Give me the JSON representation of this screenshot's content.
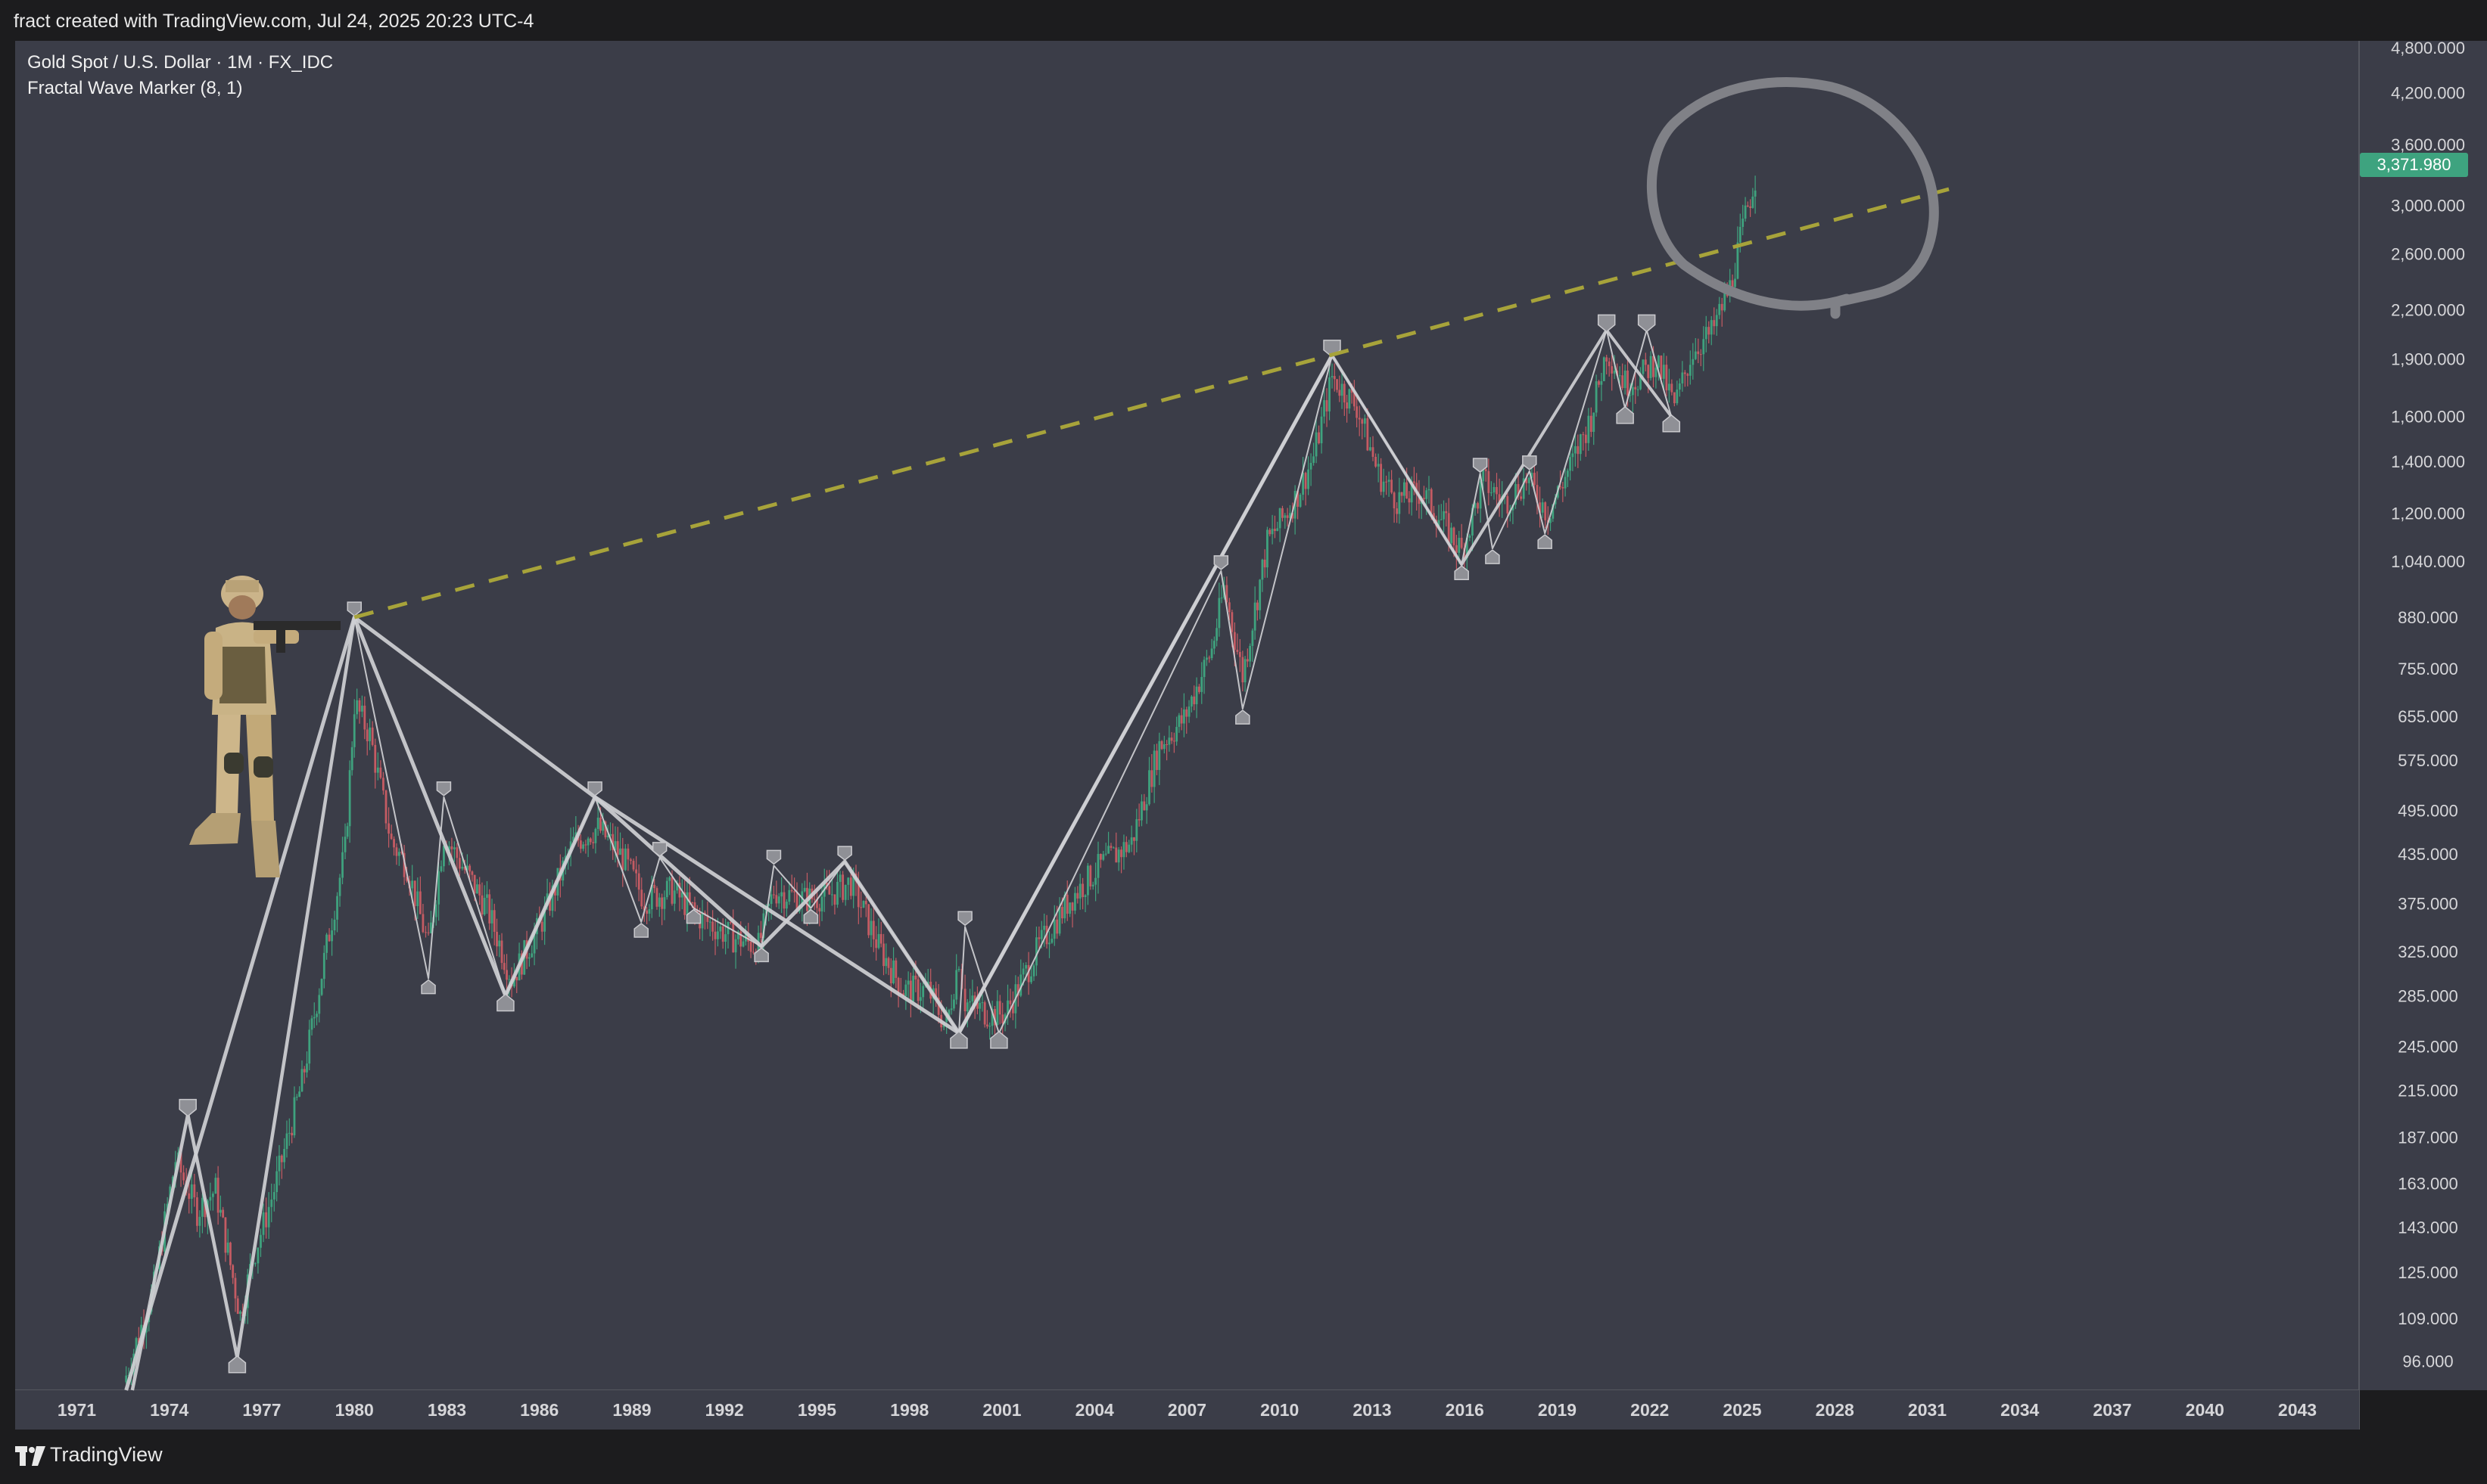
{
  "header": {
    "attribution": "fract created with TradingView.com, Jul 24, 2025 20:23 UTC-4"
  },
  "legend": {
    "symbol": "Gold Spot / U.S. Dollar · 1M · FX_IDC",
    "indicator": "Fractal Wave Marker (8, 1)"
  },
  "footer": {
    "brand": "TradingView",
    "logo_icon": "tradingview-logo-icon"
  },
  "price_badge": "3,371.980",
  "colors": {
    "background": "#3b3d48",
    "frame": "#1c1c1e",
    "up_candle": "#3fa27e",
    "down_candle": "#c45b63",
    "wave_line": "#cfcfd4",
    "trendline": "#a7a33a",
    "circle_annotation": "#808187",
    "price_badge": "#3ea37f"
  },
  "annotations": {
    "soldier_image": "soldier-with-rifle",
    "hand_drawn_circle": "circle around 2025 price peak",
    "trendline_style": "dashed"
  },
  "chart_data": {
    "type": "line",
    "scale": "log",
    "x_ticks": [
      "1971",
      "1974",
      "1977",
      "1980",
      "1983",
      "1986",
      "1989",
      "1992",
      "1995",
      "1998",
      "2001",
      "2004",
      "2007",
      "2010",
      "2013",
      "2016",
      "2019",
      "2022",
      "2025",
      "2028",
      "2031",
      "2034",
      "2037",
      "2040",
      "2043"
    ],
    "y_ticks": [
      "96.000",
      "109.000",
      "125.000",
      "143.000",
      "163.000",
      "187.000",
      "215.000",
      "245.000",
      "285.000",
      "325.000",
      "375.000",
      "435.000",
      "495.000",
      "575.000",
      "655.000",
      "755.000",
      "880.000",
      "1,040.000",
      "1,200.000",
      "1,400.000",
      "1,600.000",
      "1,900.000",
      "2,200.000",
      "2,600.000",
      "3,000.000",
      "3,600.000",
      "4,200.000",
      "4,800.000"
    ],
    "ylim": [
      88,
      4900
    ],
    "xlim": [
      1969,
      2045
    ],
    "price_series": {
      "name": "XAUUSD monthly close",
      "x": [
        1972.6,
        1973.5,
        1974.2,
        1974.9,
        1975.5,
        1976.3,
        1976.7,
        1977.4,
        1978.3,
        1979.1,
        1979.7,
        1980.0,
        1980.5,
        1981.2,
        1981.7,
        1982.4,
        1982.9,
        1983.5,
        1984.3,
        1985.1,
        1986.0,
        1987.1,
        1987.9,
        1988.7,
        1989.4,
        1990.3,
        1991.2,
        1992.2,
        1993.1,
        1993.6,
        1994.6,
        1995.4,
        1996.1,
        1997.0,
        1997.8,
        1998.6,
        1999.2,
        1999.6,
        1999.8,
        2000.6,
        2001.1,
        2002.2,
        2003.2,
        2004.2,
        2005.2,
        2006.1,
        2006.9,
        2007.8,
        2008.2,
        2008.8,
        2009.6,
        2010.5,
        2011.1,
        2011.7,
        2012.5,
        2013.2,
        2013.8,
        2014.6,
        2015.4,
        2015.9,
        2016.6,
        2017.3,
        2018.0,
        2018.7,
        2019.5,
        2020.1,
        2020.6,
        2021.2,
        2021.7,
        2022.2,
        2022.8,
        2023.4,
        2024.0,
        2024.6,
        2025.1,
        2025.5
      ],
      "y": [
        92,
        120,
        175,
        150,
        160,
        110,
        130,
        160,
        220,
        330,
        440,
        680,
        620,
        450,
        420,
        330,
        460,
        420,
        370,
        300,
        350,
        450,
        470,
        430,
        380,
        390,
        360,
        340,
        330,
        390,
        380,
        385,
        400,
        330,
        290,
        290,
        260,
        320,
        280,
        270,
        270,
        330,
        380,
        420,
        450,
        600,
        650,
        800,
        960,
        740,
        1100,
        1250,
        1420,
        1800,
        1650,
        1350,
        1250,
        1280,
        1150,
        1070,
        1320,
        1240,
        1330,
        1200,
        1400,
        1600,
        1950,
        1770,
        1800,
        1900,
        1650,
        1950,
        2050,
        2350,
        2900,
        3371.98
      ]
    },
    "wave_lines": [
      {
        "x": [
          1972.8,
          1974.6,
          1976.2,
          1980.0
        ],
        "y": [
          88,
          200,
          97,
          880
        ]
      },
      {
        "x": [
          1972.6,
          1980.0,
          1984.9,
          1987.8,
          1993.2,
          1995.9,
          1999.6
        ],
        "y": [
          88,
          880,
          285,
          515,
          330,
          425,
          255
        ]
      },
      {
        "x": [
          1980.0,
          1987.8,
          1999.6,
          2011.7
        ],
        "y": [
          880,
          515,
          255,
          1920
        ]
      },
      {
        "x": [
          1980.0,
          1982.4,
          1982.9,
          1984.9,
          1987.8,
          1989.3,
          1989.9,
          1991.0,
          1993.2,
          1993.6,
          1994.8,
          1995.9,
          1999.6,
          1999.8,
          2000.9,
          2008.1,
          2008.8,
          2011.7,
          2015.9,
          2016.5,
          2016.9,
          2018.1,
          2018.6,
          2020.6,
          2021.2,
          2021.9,
          2022.7
        ],
        "y": [
          880,
          300,
          515,
          285,
          515,
          355,
          430,
          370,
          330,
          420,
          370,
          425,
          255,
          350,
          255,
          1010,
          670,
          1920,
          1030,
          1350,
          1080,
          1360,
          1130,
          2070,
          1640,
          2070,
          1600
        ]
      },
      {
        "x": [
          1999.6,
          2011.7,
          2015.9,
          2020.6,
          2022.7
        ],
        "y": [
          255,
          1920,
          1030,
          2070,
          1600
        ]
      }
    ],
    "trendline": {
      "x": [
        1980.0,
        2031.7
      ],
      "y": [
        880,
        3150
      ]
    },
    "price_label": 3371.98
  }
}
